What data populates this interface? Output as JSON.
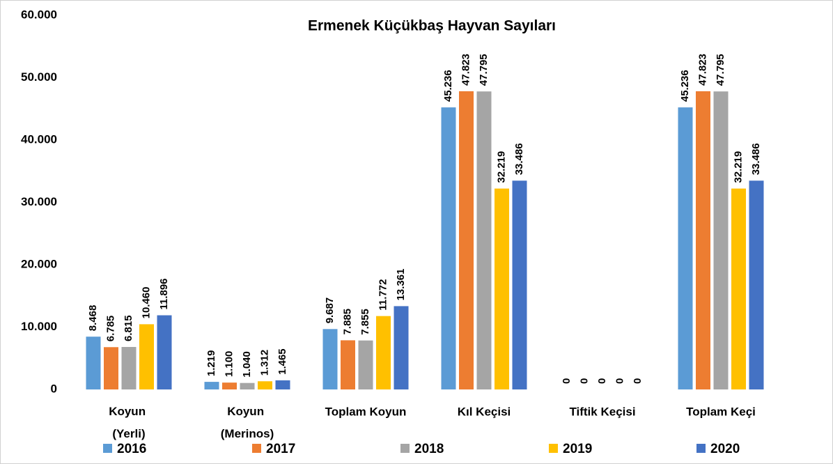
{
  "chart_data": {
    "type": "bar",
    "title": "Ermenek Küçükbaş  Hayvan Sayıları",
    "categories": [
      "Koyun (Yerli)",
      "Koyun (Merinos)",
      "Toplam Koyun",
      "Kıl Keçisi",
      "Tiftik Keçisi",
      "Toplam Keçi"
    ],
    "series": [
      {
        "name": "2016",
        "color": "#5b9bd5",
        "values": [
          8468,
          1219,
          9687,
          45236,
          0,
          45236
        ],
        "value_labels": [
          "8.468",
          "1.219",
          "9.687",
          "45.236",
          "0",
          "45.236"
        ]
      },
      {
        "name": "2017",
        "color": "#ed7d31",
        "values": [
          6785,
          1100,
          7885,
          47823,
          0,
          47823
        ],
        "value_labels": [
          "6.785",
          "1.100",
          "7.885",
          "47.823",
          "0",
          "47.823"
        ]
      },
      {
        "name": "2018",
        "color": "#a5a5a5",
        "values": [
          6815,
          1040,
          7855,
          47795,
          0,
          47795
        ],
        "value_labels": [
          "6.815",
          "1.040",
          "7.855",
          "47.795",
          "0",
          "47.795"
        ]
      },
      {
        "name": "2019",
        "color": "#ffc000",
        "values": [
          10460,
          1312,
          11772,
          32219,
          0,
          32219
        ],
        "value_labels": [
          "10.460",
          "1.312",
          "11.772",
          "32.219",
          "0",
          "32.219"
        ]
      },
      {
        "name": "2020",
        "color": "#4472c4",
        "values": [
          11896,
          1465,
          13361,
          33486,
          0,
          33486
        ],
        "value_labels": [
          "11.896",
          "1.465",
          "13.361",
          "33.486",
          "0",
          "33.486"
        ]
      }
    ],
    "ylim": [
      0,
      60000
    ],
    "yticks": [
      0,
      {
        "value": 10000,
        "label": "10.000"
      },
      {
        "value": 20000,
        "label": "20.000"
      },
      {
        "value": 30000,
        "label": "30.000"
      },
      {
        "value": 40000,
        "label": "40.000"
      },
      {
        "value": 50000,
        "label": "50.000"
      },
      {
        "value": 60000,
        "label": "60.000"
      }
    ],
    "grid": false,
    "legend": "bottom"
  }
}
